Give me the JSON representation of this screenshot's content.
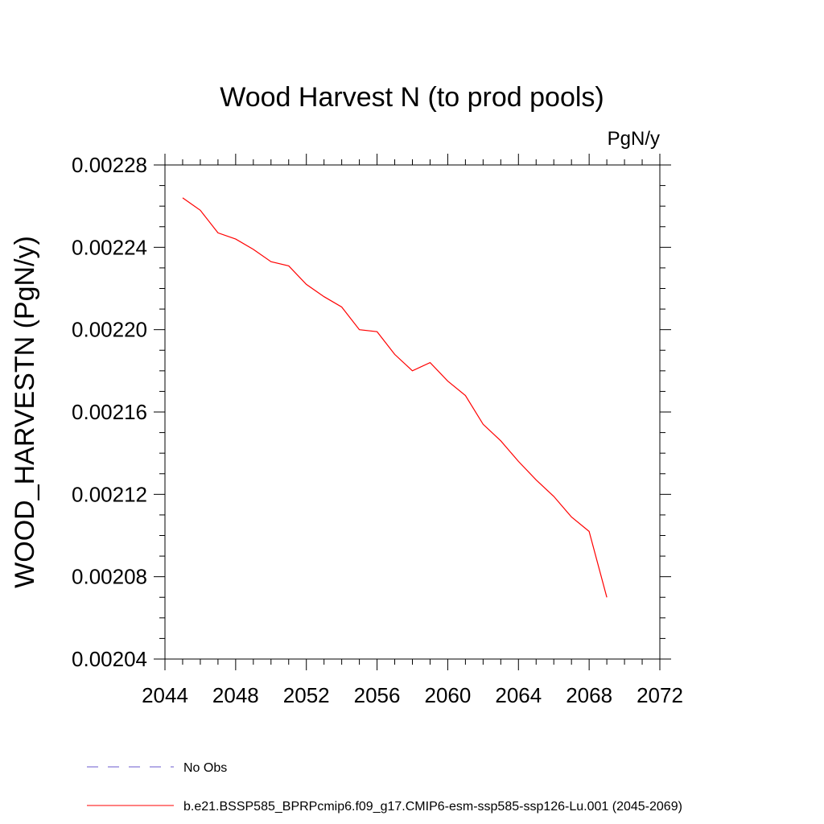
{
  "chart_data": {
    "type": "line",
    "title": "Wood Harvest N (to prod pools)",
    "units": "PgN/y",
    "ylabel": "WOOD_HARVESTN  (PgN/y)",
    "xlabel": "",
    "xlim": [
      2044,
      2072
    ],
    "ylim": [
      0.00204,
      0.00228
    ],
    "x_ticks": [
      "2044",
      "2048",
      "2052",
      "2056",
      "2060",
      "2064",
      "2068",
      "2072"
    ],
    "y_ticks": [
      "0.00204",
      "0.00208",
      "0.00212",
      "0.00216",
      "0.00220",
      "0.00224",
      "0.00228"
    ],
    "grid": false,
    "series": [
      {
        "name": "b.e21.BSSP585_BPRPcmip6.f09_g17.CMIP6-esm-ssp585-ssp126-Lu.001 (2045-2069)",
        "color": "#ff0000",
        "style": "solid",
        "x": [
          2045,
          2046,
          2047,
          2048,
          2049,
          2050,
          2051,
          2052,
          2053,
          2054,
          2055,
          2056,
          2057,
          2058,
          2059,
          2060,
          2061,
          2062,
          2063,
          2064,
          2065,
          2066,
          2067,
          2068,
          2069
        ],
        "values": [
          0.002264,
          0.002258,
          0.002247,
          0.002244,
          0.002239,
          0.002233,
          0.002231,
          0.002222,
          0.002216,
          0.002211,
          0.0022,
          0.002199,
          0.002188,
          0.00218,
          0.002184,
          0.002175,
          0.002168,
          0.002154,
          0.002146,
          0.002136,
          0.002127,
          0.002119,
          0.002109,
          0.002102,
          0.00207
        ]
      }
    ],
    "legend": [
      {
        "label": "No Obs",
        "color": "#6a5acd",
        "style": "dashed"
      },
      {
        "label": "b.e21.BSSP585_BPRPcmip6.f09_g17.CMIP6-esm-ssp585-ssp126-Lu.001 (2045-2069)",
        "color": "#ff0000",
        "style": "solid"
      }
    ],
    "legend_position": "bottom"
  }
}
